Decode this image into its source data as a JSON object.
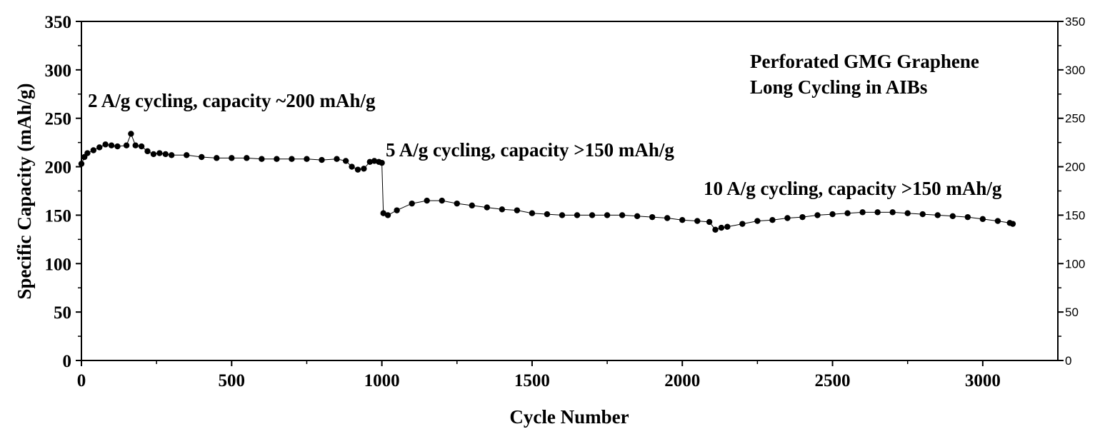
{
  "chart_data": {
    "type": "scatter",
    "title": "",
    "xlabel": "Cycle Number",
    "ylabel": "Specific Capacity (mAh/g)",
    "xlim": [
      0,
      3250
    ],
    "ylim": [
      0,
      350
    ],
    "x_ticks": [
      0,
      500,
      1000,
      1500,
      2000,
      2500,
      3000
    ],
    "y_ticks": [
      0,
      50,
      100,
      150,
      200,
      250,
      300,
      350
    ],
    "y_ticks_right": [
      0,
      50,
      100,
      150,
      200,
      250,
      300,
      350
    ],
    "marker_color": "#000000",
    "legend_text": [
      "Perforated GMG Graphene",
      "Long Cycling in AIBs"
    ],
    "annotations": [
      {
        "text": "2 A/g cycling, capacity ~200 mAh/g"
      },
      {
        "text": "5 A/g cycling, capacity >150 mAh/g"
      },
      {
        "text": "10 A/g cycling, capacity >150 mAh/g"
      }
    ],
    "series": [
      {
        "x": [
          0,
          10,
          20,
          40,
          60,
          80,
          100,
          120,
          150,
          165,
          180,
          200,
          220,
          240,
          260,
          280,
          300,
          350,
          400,
          450,
          500,
          550,
          600,
          650,
          700,
          750,
          800,
          850,
          880,
          900,
          920,
          940,
          960,
          975,
          990,
          1000,
          1005,
          1020,
          1050,
          1100,
          1150,
          1200,
          1250,
          1300,
          1350,
          1400,
          1450,
          1500,
          1550,
          1600,
          1650,
          1700,
          1750,
          1800,
          1850,
          1900,
          1950,
          2000,
          2050,
          2090,
          2110,
          2130,
          2150,
          2200,
          2250,
          2300,
          2350,
          2400,
          2450,
          2500,
          2550,
          2600,
          2650,
          2700,
          2750,
          2800,
          2850,
          2900,
          2950,
          3000,
          3050,
          3090,
          3100
        ],
        "y": [
          203,
          210,
          214,
          217,
          220,
          223,
          222,
          221,
          222,
          234,
          222,
          221,
          216,
          213,
          214,
          213,
          212,
          212,
          210,
          209,
          209,
          209,
          208,
          208,
          208,
          208,
          207,
          208,
          206,
          200,
          197,
          198,
          205,
          206,
          205,
          204,
          152,
          150,
          155,
          162,
          165,
          165,
          162,
          160,
          158,
          156,
          155,
          152,
          151,
          150,
          150,
          150,
          150,
          150,
          149,
          148,
          147,
          145,
          144,
          143,
          135,
          137,
          138,
          141,
          144,
          145,
          147,
          148,
          150,
          151,
          152,
          153,
          153,
          153,
          152,
          151,
          150,
          149,
          148,
          146,
          144,
          142,
          141
        ]
      }
    ]
  }
}
